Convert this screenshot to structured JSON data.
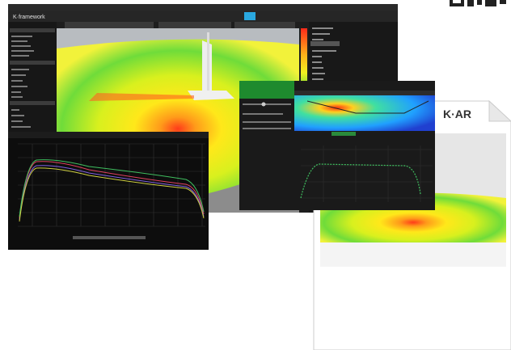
{
  "main_window": {
    "logo": "K·framework"
  },
  "document": {
    "logo": "K·AR"
  }
}
